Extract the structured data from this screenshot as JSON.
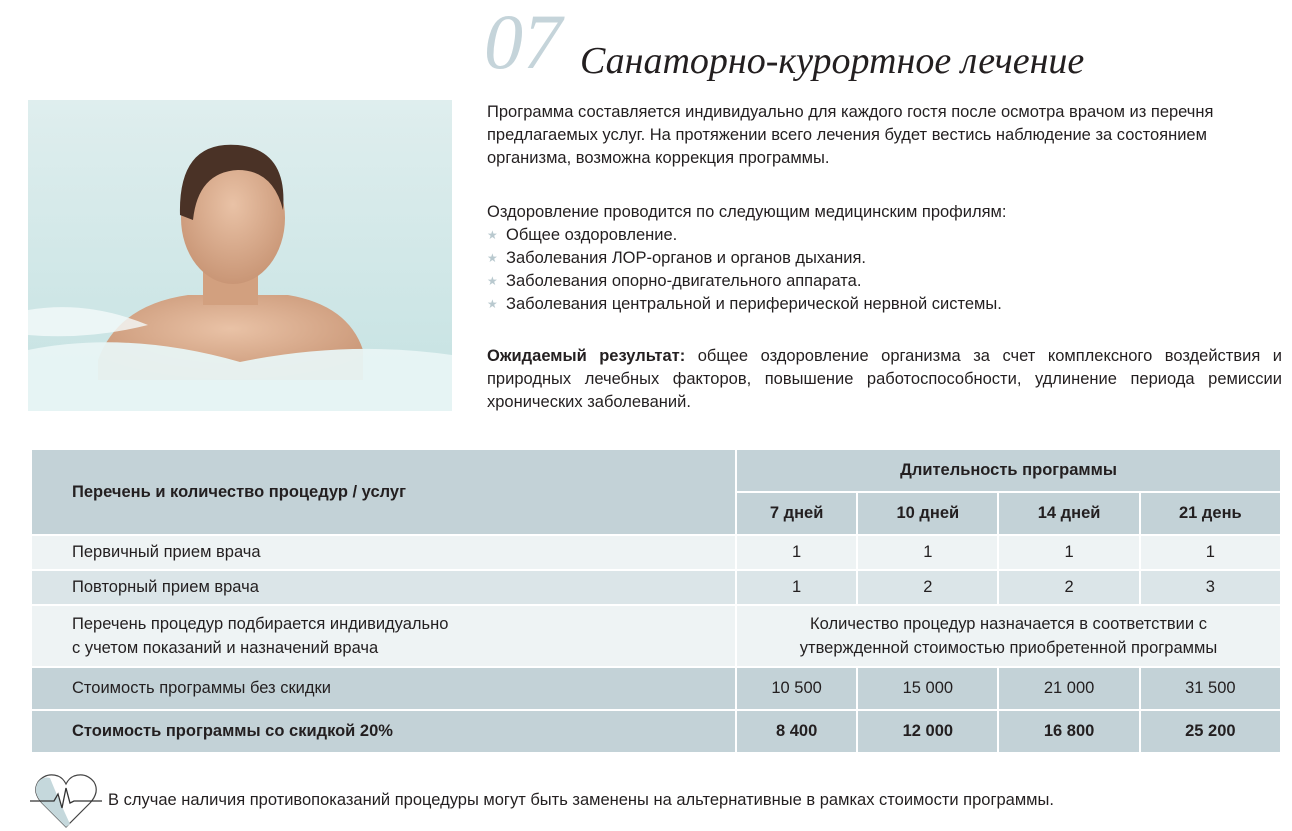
{
  "header": {
    "number": "07",
    "title": "Санаторно-курортное лечение"
  },
  "intro": "Программа составляется индивидуально для каждого гостя после осмотра врачом из перечня предлагаемых услуг. На протяжении всего лечения будет вестись наблюдение за состоянием организма, возможна коррекция программы.",
  "profiles": {
    "lead": "Оздоровление проводится по следующим медицинским профилям:",
    "items": [
      "Общее оздоровление.",
      "Заболевания ЛОР-органов и органов дыхания.",
      "Заболевания опорно-двигательного аппарата.",
      "Заболевания центральной и периферической нервной системы."
    ]
  },
  "result": {
    "label": "Ожидаемый результат:",
    "text": " общее оздоровление организма за счет комплексного воздействия и природных лечебных факторов, повышение работоспособности, удлинение периода ремиссии хронических заболеваний."
  },
  "table": {
    "col_header": "Перечень и количество процедур / услуг",
    "duration_header": "Длительность программы",
    "durations": [
      "7 дней",
      "10 дней",
      "14 дней",
      "21 день"
    ],
    "rows": [
      {
        "label": "Первичный прием врача",
        "values": [
          "1",
          "1",
          "1",
          "1"
        ]
      },
      {
        "label": "Повторный прием врача",
        "values": [
          "1",
          "2",
          "2",
          "3"
        ]
      },
      {
        "label": "Перечень процедур подбирается индивидуально\nс учетом показаний и назначений врача",
        "merged": "Количество процедур назначается в соответствии с\nутвержденной стоимостью приобретенной программы"
      },
      {
        "label": "Стоимость программы без скидки",
        "values": [
          "10 500",
          "15 000",
          "21 000",
          "31 500"
        ]
      },
      {
        "label": "Стоимость программы со скидкой 20%",
        "values": [
          "8 400",
          "12 000",
          "16 800",
          "25 200"
        ]
      }
    ]
  },
  "footer": "В случае наличия противопоказаний процедуры могут быть заменены на альтернативные в рамках стоимости программы.",
  "colors": {
    "accent": "#c3d2d7",
    "light_row": "#eef3f4",
    "mid_row": "#dbe5e8"
  }
}
